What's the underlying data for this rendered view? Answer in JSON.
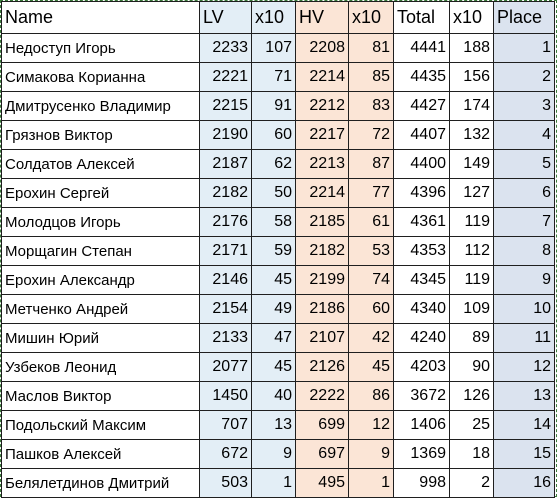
{
  "headers": [
    "Name",
    "LV",
    "x10",
    "HV",
    "x10",
    "Total",
    "x10",
    "Place"
  ],
  "rows": [
    {
      "name": "Недоступ Игорь",
      "lv": "2233",
      "lv_x10": "107",
      "hv": "2208",
      "hv_x10": "81",
      "total": "4441",
      "total_x10": "188",
      "place": "1"
    },
    {
      "name": "Симакова Корианна",
      "lv": "2221",
      "lv_x10": "71",
      "hv": "2214",
      "hv_x10": "85",
      "total": "4435",
      "total_x10": "156",
      "place": "2"
    },
    {
      "name": "Дмитрусенко Владимир",
      "lv": "2215",
      "lv_x10": "91",
      "hv": "2212",
      "hv_x10": "83",
      "total": "4427",
      "total_x10": "174",
      "place": "3"
    },
    {
      "name": "Грязнов Виктор",
      "lv": "2190",
      "lv_x10": "60",
      "hv": "2217",
      "hv_x10": "72",
      "total": "4407",
      "total_x10": "132",
      "place": "4"
    },
    {
      "name": "Солдатов Алексей",
      "lv": "2187",
      "lv_x10": "62",
      "hv": "2213",
      "hv_x10": "87",
      "total": "4400",
      "total_x10": "149",
      "place": "5"
    },
    {
      "name": "Ерохин Сергей",
      "lv": "2182",
      "lv_x10": "50",
      "hv": "2214",
      "hv_x10": "77",
      "total": "4396",
      "total_x10": "127",
      "place": "6"
    },
    {
      "name": "Молодцов Игорь",
      "lv": "2176",
      "lv_x10": "58",
      "hv": "2185",
      "hv_x10": "61",
      "total": "4361",
      "total_x10": "119",
      "place": "7"
    },
    {
      "name": "Морщагин Степан",
      "lv": "2171",
      "lv_x10": "59",
      "hv": "2182",
      "hv_x10": "53",
      "total": "4353",
      "total_x10": "112",
      "place": "8"
    },
    {
      "name": "Ерохин Александр",
      "lv": "2146",
      "lv_x10": "45",
      "hv": "2199",
      "hv_x10": "74",
      "total": "4345",
      "total_x10": "119",
      "place": "9"
    },
    {
      "name": "Метченко Андрей",
      "lv": "2154",
      "lv_x10": "49",
      "hv": "2186",
      "hv_x10": "60",
      "total": "4340",
      "total_x10": "109",
      "place": "10"
    },
    {
      "name": "Мишин Юрий",
      "lv": "2133",
      "lv_x10": "47",
      "hv": "2107",
      "hv_x10": "42",
      "total": "4240",
      "total_x10": "89",
      "place": "11"
    },
    {
      "name": "Узбеков Леонид",
      "lv": "2077",
      "lv_x10": "45",
      "hv": "2126",
      "hv_x10": "45",
      "total": "4203",
      "total_x10": "90",
      "place": "12"
    },
    {
      "name": "Маслов Виктор",
      "lv": "1450",
      "lv_x10": "40",
      "hv": "2222",
      "hv_x10": "86",
      "total": "3672",
      "total_x10": "126",
      "place": "13"
    },
    {
      "name": "Подольский Максим",
      "lv": "707",
      "lv_x10": "13",
      "hv": "699",
      "hv_x10": "12",
      "total": "1406",
      "total_x10": "25",
      "place": "14"
    },
    {
      "name": "Пашков Алексей",
      "lv": "672",
      "lv_x10": "9",
      "hv": "697",
      "hv_x10": "9",
      "total": "1369",
      "total_x10": "18",
      "place": "15"
    },
    {
      "name": "Белялетдинов Дмитрий",
      "lv": "503",
      "lv_x10": "1",
      "hv": "495",
      "hv_x10": "1",
      "total": "998",
      "total_x10": "2",
      "place": "16"
    }
  ]
}
